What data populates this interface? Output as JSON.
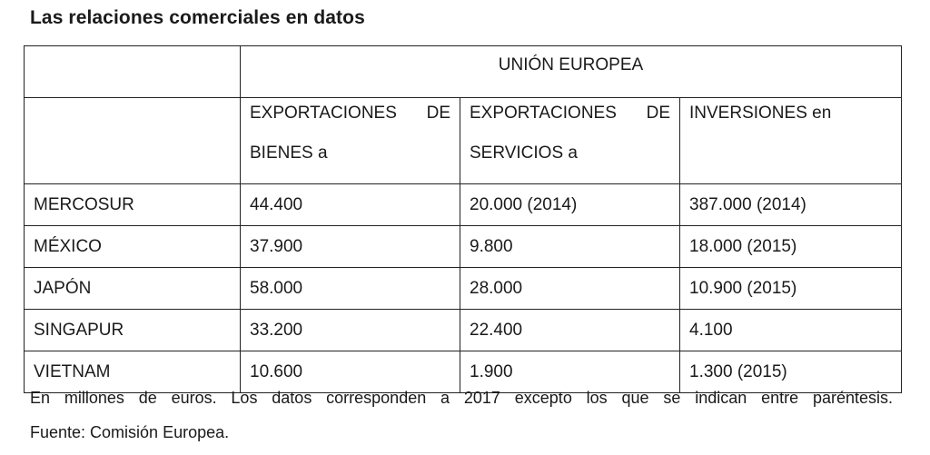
{
  "title": "Las relaciones comerciales en datos",
  "table": {
    "group_header": "UNIÓN EUROPEA",
    "columns": [
      {
        "line1": "EXPORTACIONES DE",
        "line2": "BIENES a"
      },
      {
        "line1": "EXPORTACIONES DE",
        "line2": "SERVICIOS a"
      },
      {
        "line1": "INVERSIONES en",
        "line2": ""
      }
    ],
    "rows": [
      {
        "label": "MERCOSUR",
        "values": [
          "44.400",
          "20.000 (2014)",
          "387.000 (2014)"
        ]
      },
      {
        "label": "MÉXICO",
        "values": [
          "37.900",
          "9.800",
          "18.000 (2015)"
        ]
      },
      {
        "label": "JAPÓN",
        "values": [
          "58.000",
          "28.000",
          "10.900 (2015)"
        ]
      },
      {
        "label": "SINGAPUR",
        "values": [
          "33.200",
          "22.400",
          "4.100"
        ]
      },
      {
        "label": "VIETNAM",
        "values": [
          "10.600",
          "1.900",
          "1.300 (2015)"
        ]
      }
    ]
  },
  "note": "En millones de euros. Los datos corresponden a 2017 excepto los que se indican entre paréntesis.",
  "source": "Fuente: Comisión Europea."
}
